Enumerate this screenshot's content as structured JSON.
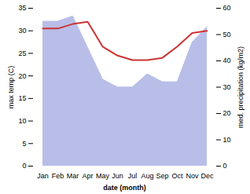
{
  "chart_data": {
    "type": "line",
    "categories": [
      "Jan",
      "Feb",
      "Mar",
      "Apr",
      "May",
      "Jun",
      "Jul",
      "Aug",
      "Sep",
      "Oct",
      "Nov",
      "Dec"
    ],
    "xlabel": "date (month)",
    "ylabel": "max temp (C)",
    "y2label": "med. precipitation (kg/m2)",
    "ylim": [
      0,
      35
    ],
    "yticks": [
      0,
      5,
      10,
      15,
      20,
      25,
      30,
      35
    ],
    "y2lim": [
      0,
      60
    ],
    "y2ticks": [
      0,
      10,
      20,
      30,
      40,
      50,
      60
    ],
    "grid": false,
    "series": [
      {
        "type": "area",
        "axis": "y2",
        "color": "#b8bee8",
        "values": [
          55,
          55,
          57,
          45,
          33,
          30,
          30,
          35,
          32,
          32,
          47,
          53
        ]
      },
      {
        "type": "line",
        "color": "#cc3333",
        "values": [
          30.5,
          30.5,
          31.5,
          32.0,
          26.5,
          24.5,
          23.5,
          23.5,
          24.0,
          26.5,
          29.5,
          30.0
        ]
      }
    ]
  }
}
